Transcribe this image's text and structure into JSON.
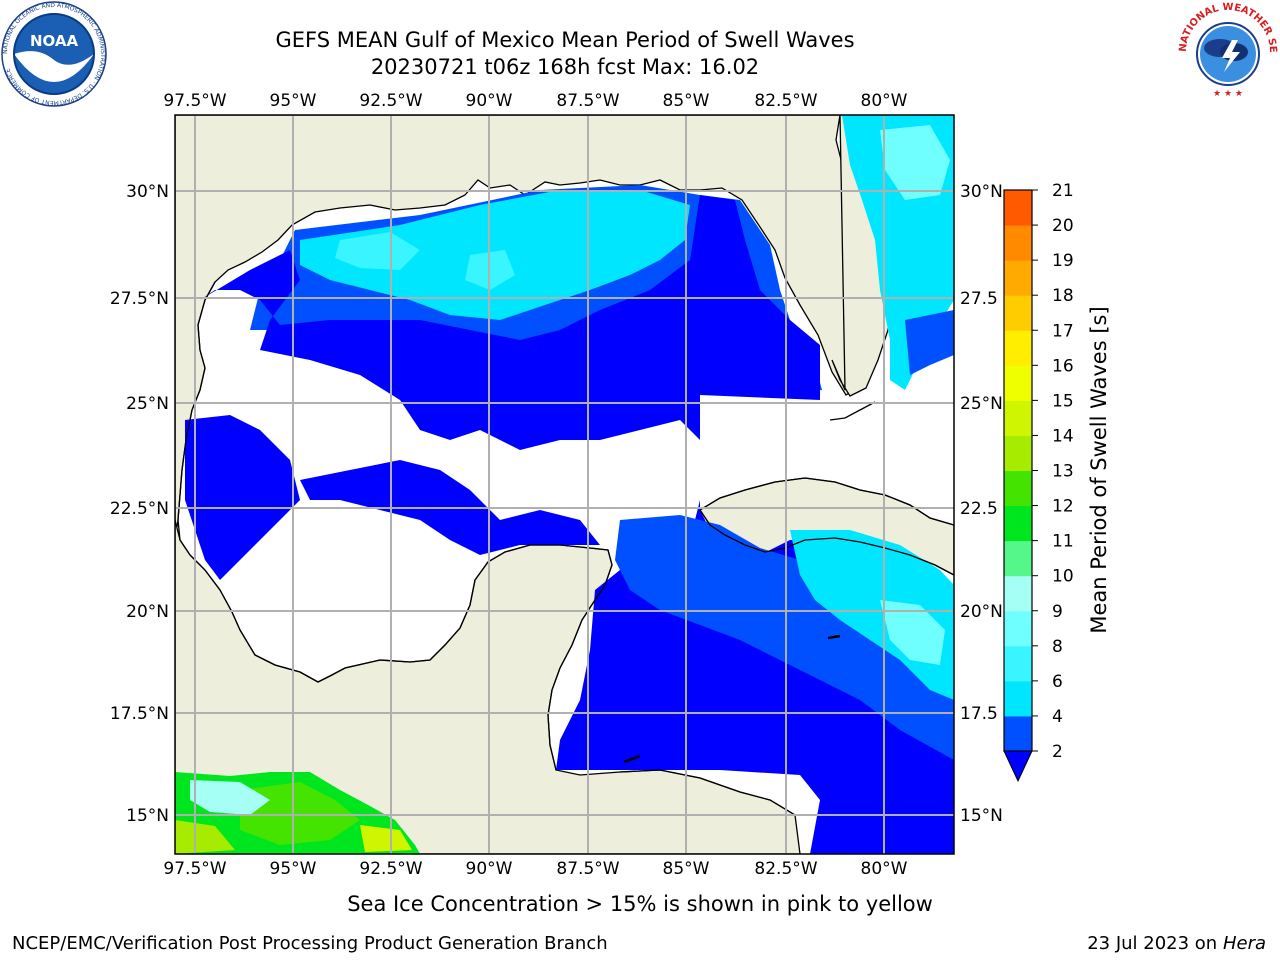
{
  "title_line1": "GEFS MEAN Gulf of Mexico Mean Period of Swell Waves",
  "title_line2": "20230721 t06z 168h fcst   Max: 16.02",
  "lon_ticks": [
    "97.5°W",
    "95°W",
    "92.5°W",
    "90°W",
    "87.5°W",
    "85°W",
    "82.5°W",
    "80°W"
  ],
  "lat_ticks": [
    "30°N",
    "27.5°N",
    "25°N",
    "22.5°N",
    "20°N",
    "17.5°N",
    "15°N"
  ],
  "lat_ticks_right": [
    "30°N",
    "27.5",
    "25°N",
    "22.5",
    "20°N",
    "17.5",
    "15°N"
  ],
  "colorbar": {
    "label": "Mean Period of Swell Waves [s]",
    "ticks": [
      "2",
      "4",
      "6",
      "8",
      "9",
      "10",
      "11",
      "12",
      "13",
      "14",
      "15",
      "16",
      "17",
      "18",
      "19",
      "20",
      "21"
    ],
    "colors": [
      "#0050ff",
      "#00e6ff",
      "#38f5ff",
      "#70ffff",
      "#a6fff4",
      "#56f78a",
      "#00e61e",
      "#45e300",
      "#a6eb00",
      "#d0f500",
      "#f0ff00",
      "#ffee00",
      "#ffcc00",
      "#ffaa00",
      "#ff8a00",
      "#ff5a00",
      "#ff2a00",
      "#ff0000"
    ],
    "under_color": "#0000ff"
  },
  "land_color": "#eeeedd",
  "logo_left": {
    "text": "NOAA",
    "ring": "NATIONAL OCEANIC AND ATMOSPHERIC ADMINISTRATION · U.S. DEPARTMENT OF COMMERCE"
  },
  "logo_right": {
    "ring": "NATIONAL WEATHER SERVICE"
  },
  "footer_center": "Sea Ice Concentration > 15% is shown in pink to yellow",
  "footer_left": "NCEP/EMC/Verification Post Processing Product Generation Branch",
  "footer_date": "23 Jul 2023 on ",
  "footer_machine": "Hera"
}
